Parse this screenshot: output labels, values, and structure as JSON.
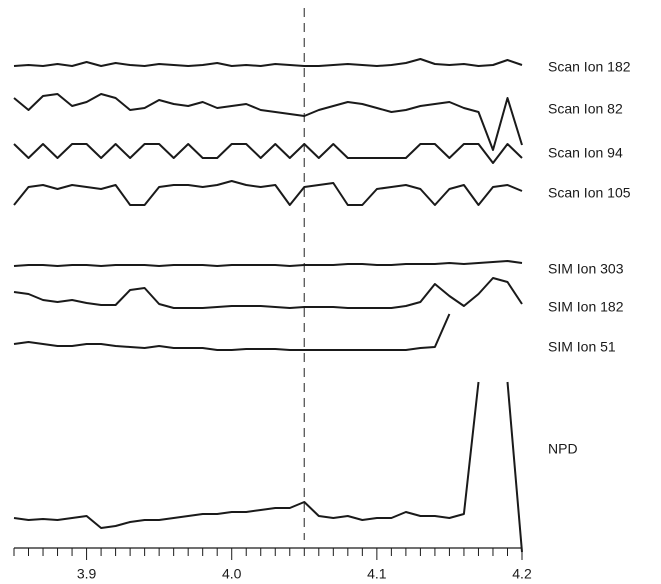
{
  "chart_data": {
    "type": "line",
    "x": [
      3.85,
      3.86,
      3.87,
      3.88,
      3.89,
      3.9,
      3.91,
      3.92,
      3.93,
      3.94,
      3.95,
      3.96,
      3.97,
      3.98,
      3.99,
      4.0,
      4.01,
      4.02,
      4.03,
      4.04,
      4.05,
      4.06,
      4.07,
      4.08,
      4.09,
      4.1,
      4.11,
      4.12,
      4.13,
      4.14,
      4.15,
      4.16,
      4.17,
      4.18,
      4.19,
      4.2
    ],
    "xlim": [
      3.85,
      4.2
    ],
    "xticks": [
      3.9,
      {
        "value": 4,
        "label": "4.0"
      },
      4.1,
      4.2
    ],
    "xminorticks": [
      3.85,
      3.86,
      3.87,
      3.88,
      3.89,
      3.91,
      3.92,
      3.93,
      3.94,
      3.95,
      3.96,
      3.97,
      3.98,
      3.99,
      4.01,
      4.02,
      4.03,
      4.04,
      4.05,
      4.06,
      4.07,
      4.08,
      4.09,
      4.11,
      4.12,
      4.13,
      4.14,
      4.15,
      4.16,
      4.17,
      4.18,
      4.19
    ],
    "marker_x": 4.05,
    "color": "#1a1a1a",
    "series": [
      {
        "name": "Scan Ion 182",
        "values": [
          2,
          3,
          2,
          4,
          2,
          6,
          2,
          5,
          3,
          2,
          4,
          3,
          2,
          3,
          5,
          2,
          3,
          2,
          4,
          3,
          2,
          2,
          3,
          4,
          3,
          2,
          3,
          5,
          9,
          4,
          3,
          4,
          2,
          3,
          8,
          3
        ]
      },
      {
        "name": "Scan Ion 82",
        "values": [
          22,
          10,
          24,
          26,
          14,
          18,
          26,
          22,
          10,
          12,
          20,
          16,
          14,
          18,
          12,
          14,
          16,
          10,
          8,
          6,
          4,
          10,
          14,
          18,
          16,
          12,
          8,
          10,
          14,
          16,
          18,
          12,
          8,
          -30,
          22,
          -25
        ]
      },
      {
        "name": "Scan Ion 94",
        "values": [
          14,
          0,
          14,
          0,
          14,
          14,
          0,
          14,
          0,
          14,
          14,
          0,
          14,
          0,
          0,
          14,
          14,
          0,
          14,
          0,
          14,
          0,
          14,
          0,
          0,
          0,
          0,
          0,
          14,
          14,
          0,
          14,
          14,
          -5,
          14,
          0
        ]
      },
      {
        "name": "Scan Ion 105",
        "values": [
          0,
          18,
          20,
          16,
          20,
          18,
          16,
          20,
          0,
          0,
          18,
          20,
          20,
          18,
          20,
          24,
          20,
          18,
          20,
          0,
          18,
          20,
          22,
          0,
          0,
          16,
          18,
          20,
          16,
          0,
          16,
          20,
          0,
          18,
          20,
          14
        ]
      },
      {
        "name": "SIM Ion 303",
        "values": [
          0,
          1,
          1,
          0,
          1,
          1,
          0,
          1,
          1,
          1,
          0,
          1,
          1,
          1,
          0,
          1,
          1,
          1,
          1,
          0,
          1,
          1,
          1,
          2,
          2,
          1,
          1,
          2,
          2,
          2,
          3,
          2,
          3,
          4,
          5,
          3
        ]
      },
      {
        "name": "SIM Ion 182",
        "values": [
          16,
          14,
          8,
          6,
          8,
          5,
          3,
          3,
          18,
          20,
          4,
          0,
          0,
          0,
          1,
          2,
          2,
          2,
          1,
          0,
          1,
          1,
          1,
          0,
          0,
          0,
          0,
          2,
          6,
          24,
          12,
          2,
          14,
          30,
          26,
          4
        ]
      },
      {
        "name": "SIM Ion 51",
        "values": [
          6,
          8,
          6,
          4,
          4,
          6,
          6,
          4,
          3,
          2,
          4,
          2,
          2,
          2,
          0,
          0,
          1,
          1,
          1,
          0,
          0,
          0,
          0,
          0,
          0,
          0,
          0,
          0,
          2,
          3,
          36,
          null,
          null,
          null,
          null,
          null
        ]
      },
      {
        "name": "NPD",
        "values": [
          4,
          2,
          3,
          2,
          4,
          6,
          -6,
          -4,
          0,
          2,
          2,
          4,
          6,
          8,
          8,
          10,
          10,
          12,
          14,
          14,
          20,
          6,
          4,
          6,
          2,
          4,
          4,
          10,
          6,
          6,
          4,
          8,
          140,
          null,
          140,
          -30
        ]
      }
    ]
  }
}
